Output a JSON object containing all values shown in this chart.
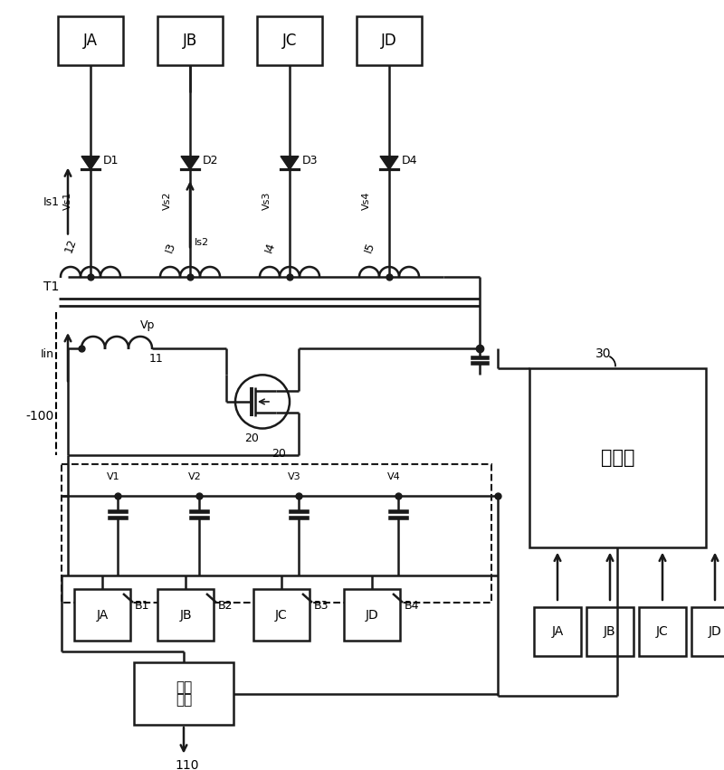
{
  "bg_color": "#ffffff",
  "line_color": "#1a1a1a",
  "top_connectors": [
    "JA",
    "JB",
    "JC",
    "JD"
  ],
  "diodes": [
    "D1",
    "D2",
    "D3",
    "D4"
  ],
  "vs_labels": [
    "Vs1",
    "Vs2",
    "Vs3",
    "Vs4"
  ],
  "ind_labels": [
    "12",
    "I3",
    "I4",
    "I5"
  ],
  "battery_labels": [
    "B1",
    "B2",
    "B3",
    "B4"
  ],
  "battery_nodes": [
    "V1",
    "V2",
    "V3",
    "V4"
  ],
  "bottom_connectors": [
    "JA",
    "JB",
    "JC",
    "JD"
  ],
  "jbat_labels": [
    "JA",
    "JB",
    "JC",
    "JD"
  ],
  "controller_label": "控制器",
  "charger_label_1": "充电",
  "charger_label_2": "电路"
}
